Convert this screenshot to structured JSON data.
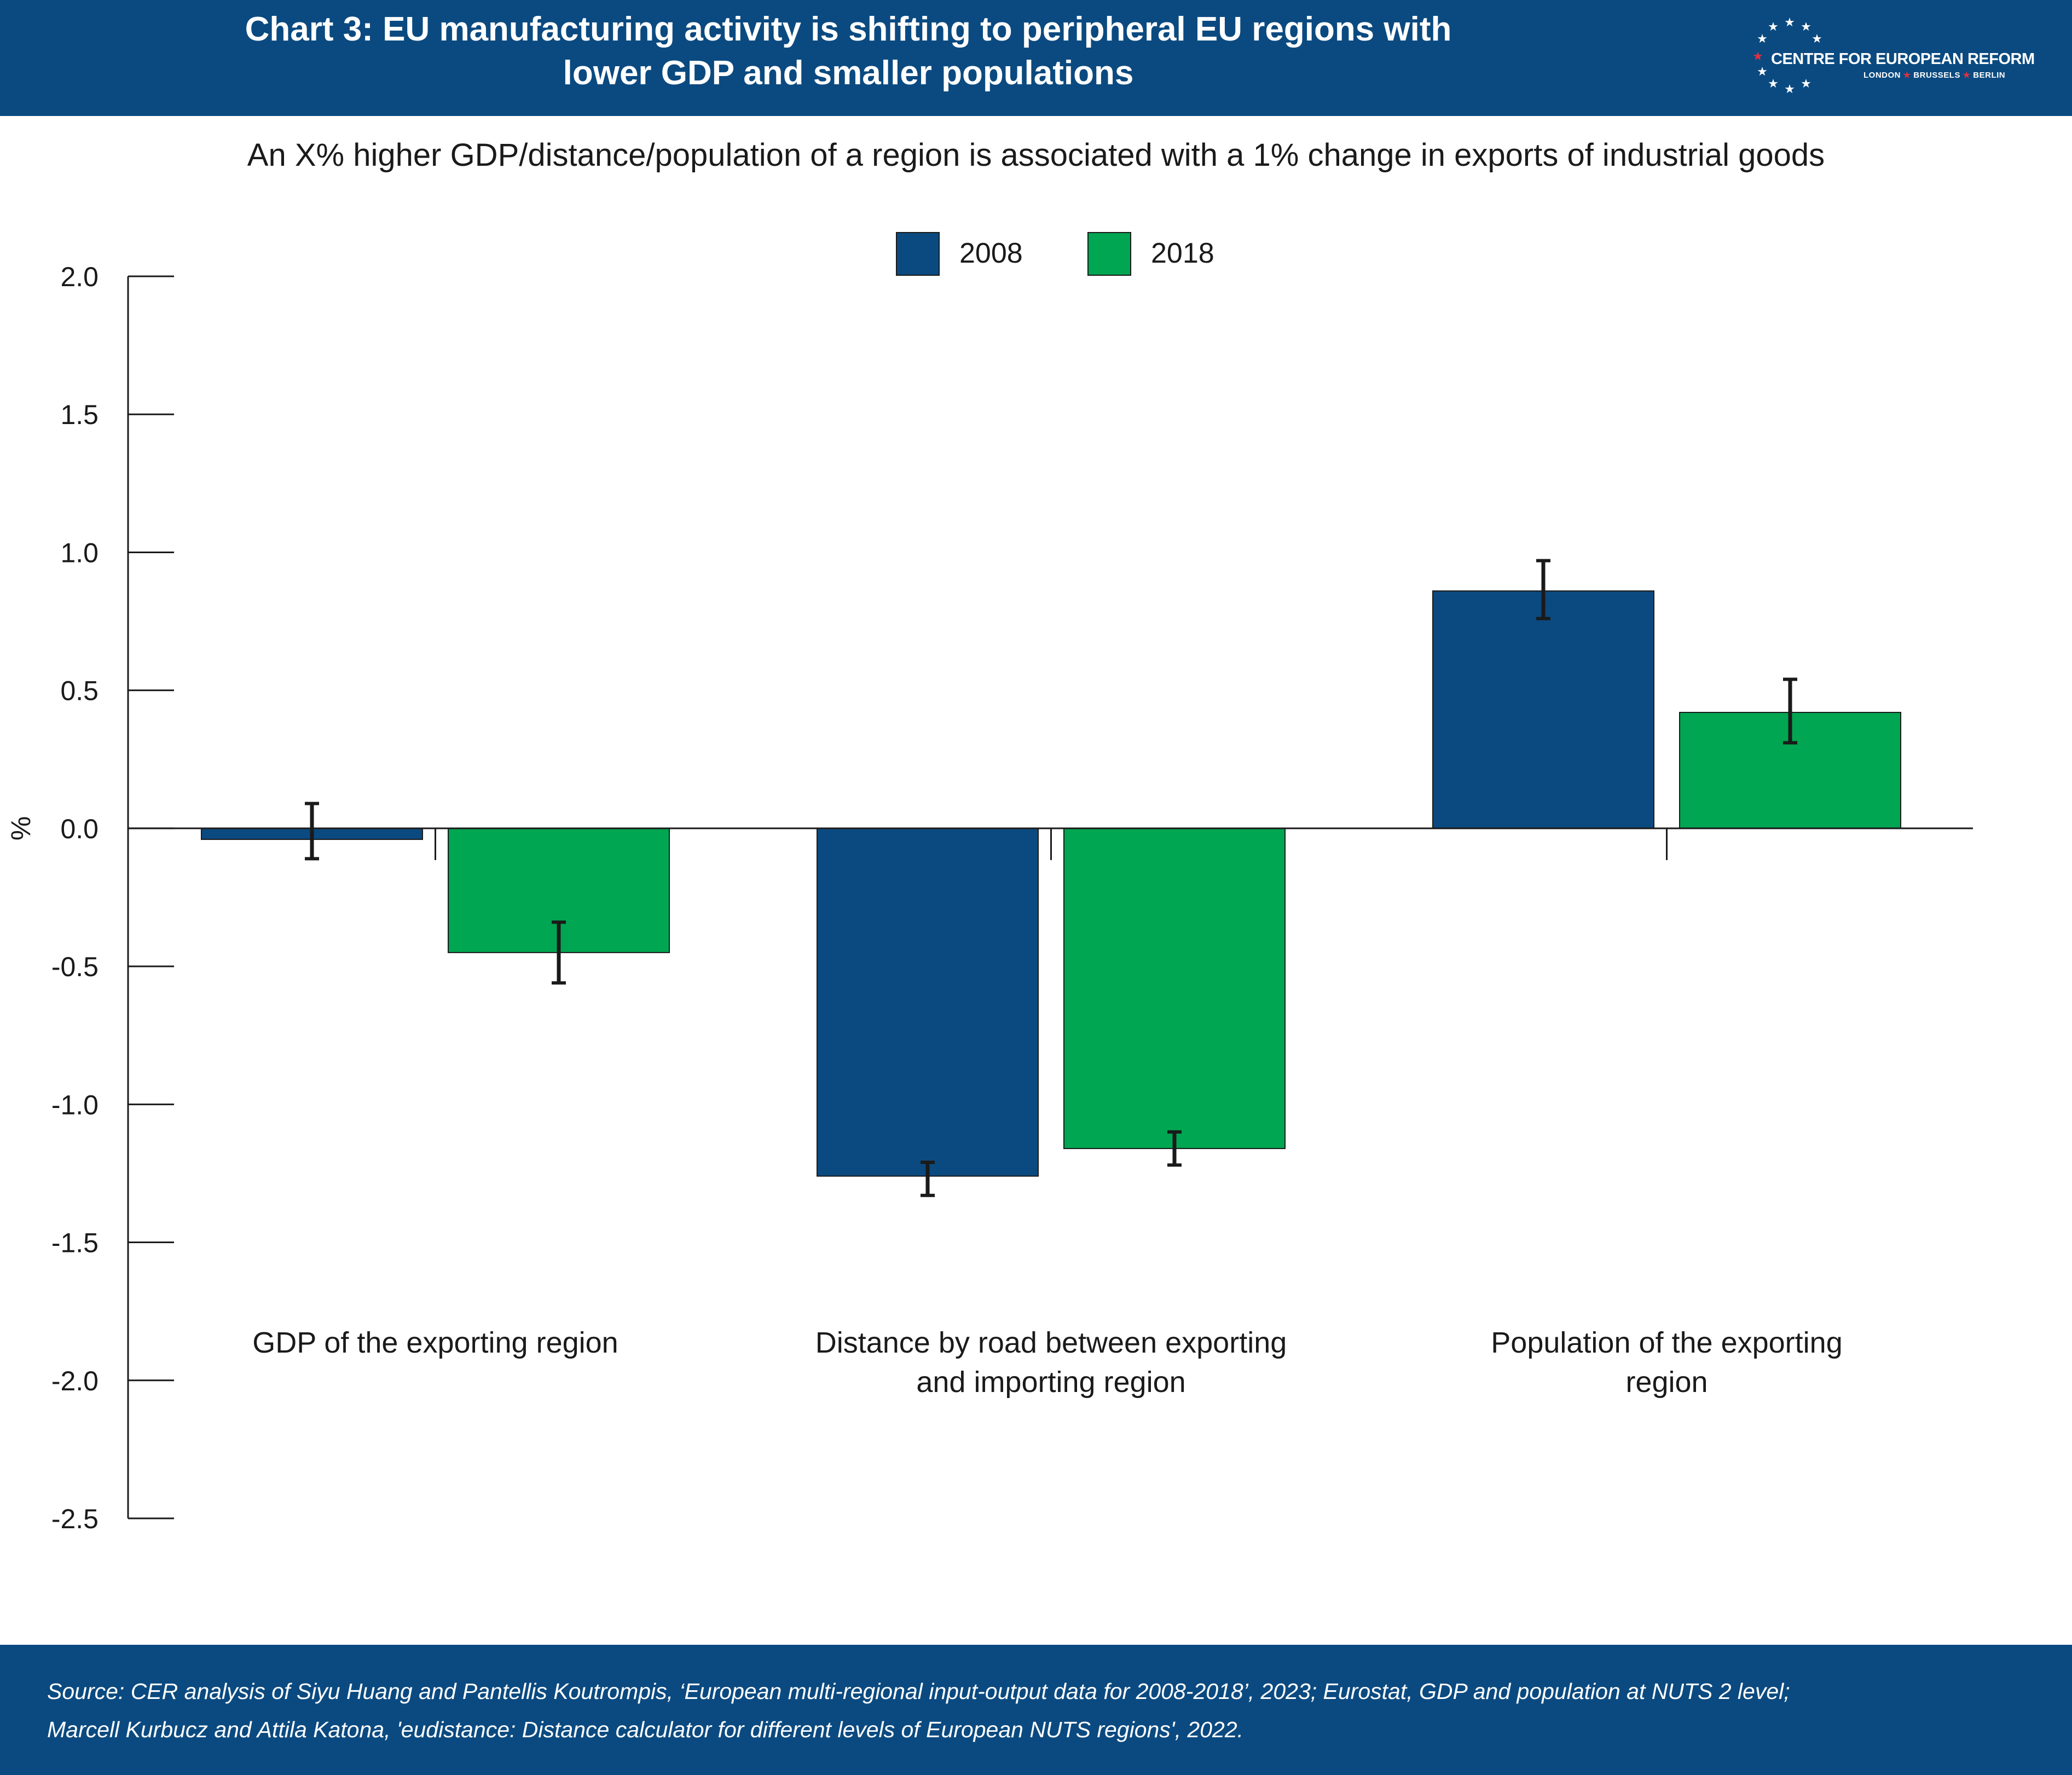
{
  "header": {
    "title_line1": "Chart 3: EU manufacturing activity is shifting to peripheral EU regions with",
    "title_line2": "lower GDP and smaller populations",
    "logo_name": "CENTRE FOR EUROPEAN REFORM",
    "logo_city1": "LONDON",
    "logo_city2": "BRUSSELS",
    "logo_city3": "BERLIN"
  },
  "subtitle": "An X% higher GDP/distance/population of a region is associated with a 1% change in exports of industrial goods",
  "footer": {
    "source_line1": "Source: CER analysis of Siyu Huang and Pantellis Koutrompis, ‘European multi-regional input-output data for 2008-2018’, 2023; Eurostat, GDP and population at NUTS 2 level;",
    "source_line2": "Marcell Kurbucz and Attila Katona, 'eudistance: Distance calculator for different levels of European NUTS regions', 2022."
  },
  "chart_data": {
    "type": "bar",
    "title": "Chart 3: EU manufacturing activity is shifting to peripheral EU regions with lower GDP and smaller populations",
    "subtitle": "An X% higher GDP/distance/population of a region is associated with a 1% change in exports of industrial goods",
    "ylabel": "%",
    "xlabel": "",
    "ylim": [
      -2.5,
      2.0
    ],
    "yticks": [
      2.0,
      1.5,
      1.0,
      0.5,
      0.0,
      -0.5,
      -1.0,
      -1.5,
      -2.0,
      -2.5
    ],
    "ytick_labels": [
      "2.0",
      "1.5",
      "1.0",
      "0.5",
      "0.0",
      "-0.5",
      "-1.0",
      "-1.5",
      "-2.0",
      "-2.5"
    ],
    "categories": [
      [
        "GDP of the exporting region"
      ],
      [
        "Distance by road between exporting",
        "and importing region"
      ],
      [
        "Population of the exporting",
        "region"
      ]
    ],
    "series": [
      {
        "name": "2008",
        "color": "#0b4a80",
        "values": [
          -0.04,
          -1.26,
          0.86
        ],
        "error_low": [
          -0.11,
          -1.33,
          0.76
        ],
        "error_high": [
          0.09,
          -1.21,
          0.97
        ]
      },
      {
        "name": "2018",
        "color": "#00a651",
        "values": [
          -0.45,
          -1.16,
          0.42
        ],
        "error_low": [
          -0.56,
          -1.22,
          0.31
        ],
        "error_high": [
          -0.34,
          -1.1,
          0.54
        ]
      }
    ],
    "grid": false,
    "legend": "top-center"
  }
}
